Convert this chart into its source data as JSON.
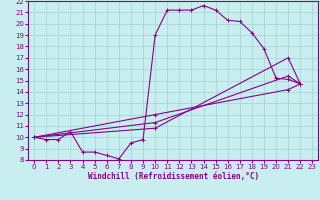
{
  "xlabel": "Windchill (Refroidissement éolien,°C)",
  "bg_color": "#c8eef0",
  "line_color": "#880088",
  "grid_color": "#a8d8d8",
  "xlim": [
    -0.5,
    23.5
  ],
  "ylim": [
    8,
    22
  ],
  "xticks": [
    0,
    1,
    2,
    3,
    4,
    5,
    6,
    7,
    8,
    9,
    10,
    11,
    12,
    13,
    14,
    15,
    16,
    17,
    18,
    19,
    20,
    21,
    22,
    23
  ],
  "yticks": [
    8,
    9,
    10,
    11,
    12,
    13,
    14,
    15,
    16,
    17,
    18,
    19,
    20,
    21,
    22
  ],
  "line1_x": [
    0,
    1,
    2,
    3,
    4,
    5,
    6,
    7,
    8,
    9,
    10,
    11,
    12,
    13,
    14,
    15,
    16,
    17,
    18,
    19,
    20,
    21,
    22
  ],
  "line1_y": [
    10,
    9.8,
    9.8,
    10.5,
    8.7,
    8.7,
    8.4,
    8.1,
    9.5,
    9.8,
    19.0,
    21.2,
    21.2,
    21.2,
    21.6,
    21.2,
    20.3,
    20.2,
    19.2,
    17.8,
    15.2,
    15.1,
    14.7
  ],
  "line2_x": [
    0,
    10,
    21,
    22
  ],
  "line2_y": [
    10,
    10.8,
    17.0,
    14.7
  ],
  "line3_x": [
    0,
    10,
    21,
    22
  ],
  "line3_y": [
    10,
    11.3,
    15.4,
    14.7
  ],
  "line4_x": [
    0,
    10,
    21,
    22
  ],
  "line4_y": [
    10,
    12.0,
    14.2,
    14.7
  ]
}
